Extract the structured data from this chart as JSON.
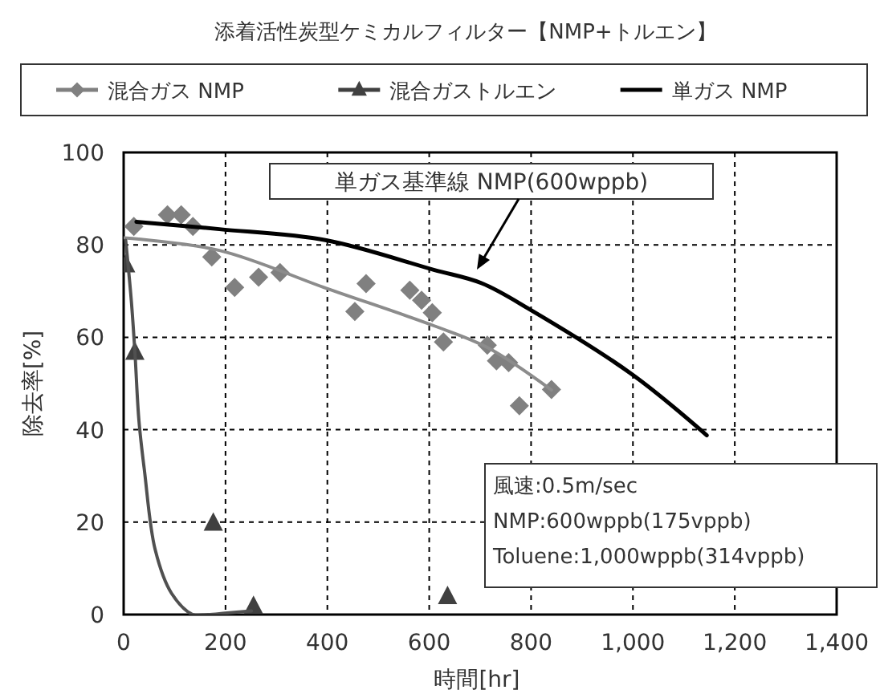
{
  "chart_data": {
    "type": "scatter",
    "title": "添着活性炭型ケミカルフィルター【NMP+トルエン】",
    "xlabel": "時間[hr]",
    "ylabel": "除去率[%]",
    "xlim": [
      0,
      1400
    ],
    "xticks": [
      0,
      200,
      400,
      600,
      800,
      {
        "value": 1000,
        "label": "1,000"
      },
      {
        "value": 1200,
        "label": "1,200"
      },
      {
        "value": 1400,
        "label": "1,400"
      }
    ],
    "ylim": [
      0,
      100
    ],
    "yticks": [
      0,
      20,
      40,
      60,
      80,
      100
    ],
    "grid": true,
    "legend": "top",
    "series": [
      {
        "name": "混合ガス NMP",
        "marker": "diamond",
        "color": "#808080",
        "x": [
          20,
          86,
          113,
          136,
          173,
          218,
          265,
          307,
          454,
          476,
          562,
          585,
          606,
          628,
          714,
          732,
          756,
          777,
          840
        ],
        "values": [
          84,
          86.5,
          86.5,
          84,
          77.4,
          70.8,
          73,
          74,
          65.6,
          71.6,
          70.2,
          68,
          65.3,
          59,
          58.3,
          54.9,
          54.5,
          45.2,
          48.7
        ]
      },
      {
        "name": "混合ガストルエン",
        "marker": "triangle",
        "color": "#404040",
        "x": [
          4,
          22,
          176,
          255,
          636
        ],
        "values": [
          75.6,
          56.7,
          19.7,
          1.7,
          3.8
        ]
      },
      {
        "name": "単ガス NMP",
        "type": "line",
        "marker": "none",
        "line_style": "solid",
        "color": "#000000",
        "x": [
          25,
          188,
          398,
          609,
          703,
          798,
          998,
          1145
        ],
        "values": [
          85,
          83.4,
          81,
          74.6,
          71.7,
          66,
          52,
          38.8
        ]
      },
      {
        "type": "line",
        "marker": "none",
        "line_style": "solid",
        "color": "#8c8c8c",
        "x": [
          1,
          188,
          398,
          609,
          714,
          840
        ],
        "values": [
          81.5,
          78.8,
          70.6,
          62.5,
          57.8,
          48.6
        ]
      },
      {
        "type": "line",
        "marker": "none",
        "line_style": "solid",
        "color": "#505050",
        "x": [
          4,
          15,
          22,
          30,
          41,
          62,
          94,
          136,
          165,
          199,
          251
        ],
        "values": [
          81,
          68,
          57,
          42,
          31,
          14,
          4.6,
          0,
          0,
          0.3,
          0.8
        ]
      }
    ],
    "annotations": [
      "単ガス基準線 NMP(600wppb)",
      "風速:0.5m/sec",
      "NMP:600wppb(175vppb)",
      "Toluene:1,000wppb(314vppb)"
    ]
  }
}
